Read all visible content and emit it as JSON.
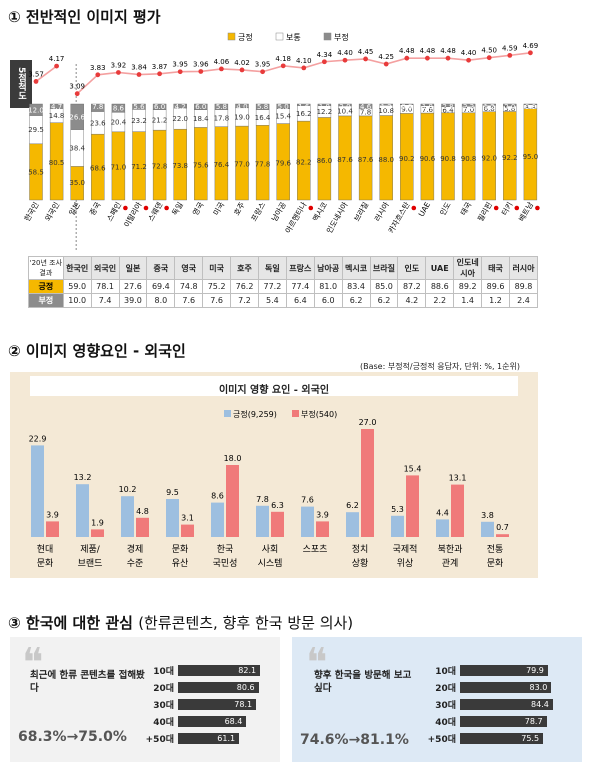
{
  "section1": {
    "title": "① 전반적인 이미지 평가",
    "side_label": "5점척도",
    "legend": [
      {
        "label": "긍정",
        "color": "#f5b800"
      },
      {
        "label": "보통",
        "color": "#ffffff"
      },
      {
        "label": "부정",
        "color": "#8c8c8c"
      }
    ],
    "table_header": "'20년 조사결과",
    "table_row_labels": [
      "긍정",
      "부정"
    ]
  },
  "section2": {
    "title": "② 이미지 영향요인 - 외국인",
    "base_note": "(Base: 부정적/긍정적 응답자, 단위: %, 1순위)",
    "chart_title": "이미지 영향 요인 - 외국인"
  },
  "section3": {
    "title_main": "③ 한국에 대한 관심",
    "title_sub": "(한류콘텐츠, 향후 한국 방문 의사)",
    "left": {
      "quote_mark": "❝",
      "question": "최근에 한류 콘텐츠를 접해봤다",
      "change": "68.3%→75.0%",
      "rows": [
        {
          "label": "10대",
          "value": 82.1
        },
        {
          "label": "20대",
          "value": 80.6
        },
        {
          "label": "30대",
          "value": 78.1
        },
        {
          "label": "40대",
          "value": 68.4
        },
        {
          "label": "+50대",
          "value": 61.1
        }
      ]
    },
    "right": {
      "quote_mark": "❝",
      "question": "향후 한국을 방문해 보고 싶다",
      "change": "74.6%→81.1%",
      "rows": [
        {
          "label": "10대",
          "value": 79.9
        },
        {
          "label": "20대",
          "value": 83.0
        },
        {
          "label": "30대",
          "value": 84.4
        },
        {
          "label": "40대",
          "value": 78.7
        },
        {
          "label": "+50대",
          "value": 75.5
        }
      ]
    }
  },
  "chart_data": [
    {
      "type": "bar",
      "stacked": true,
      "categories": [
        "한국인",
        "외국인",
        "일본",
        "중국",
        "스페인",
        "이탈리아",
        "스웨덴",
        "독일",
        "영국",
        "미국",
        "호주",
        "프랑스",
        "남아공",
        "아르헨티나",
        "멕시코",
        "인도네시아",
        "브라질",
        "러시아",
        "카자흐스탄",
        "UAE",
        "인도",
        "태국",
        "필리핀",
        "터키",
        "베트남"
      ],
      "red_dot_categories": [
        "스페인",
        "이탈리아",
        "스웨덴",
        "아르헨티나",
        "카자흐스탄",
        "필리핀",
        "터키",
        "베트남"
      ],
      "series": [
        {
          "name": "긍정",
          "color": "#f5b800",
          "values": [
            58.5,
            80.5,
            35.0,
            68.6,
            71.0,
            71.2,
            72.8,
            73.8,
            75.6,
            76.4,
            77.0,
            77.8,
            79.6,
            82.2,
            86.0,
            87.6,
            87.6,
            88.0,
            90.2,
            90.6,
            90.8,
            90.8,
            92.0,
            92.2,
            95.0
          ]
        },
        {
          "name": "보통",
          "color": "#ffffff",
          "values": [
            29.5,
            14.8,
            38.4,
            23.6,
            20.4,
            23.2,
            21.2,
            22.0,
            18.4,
            17.8,
            19.0,
            16.4,
            15.4,
            16.2,
            12.2,
            10.4,
            7.8,
            10.8,
            9.0,
            7.6,
            6.4,
            7.0,
            6.8,
            5.8,
            4.4
          ]
        },
        {
          "name": "부정",
          "color": "#8c8c8c",
          "values": [
            12.0,
            4.7,
            26.6,
            7.8,
            8.6,
            5.6,
            6.0,
            4.2,
            6.0,
            5.8,
            4.0,
            5.8,
            5.0,
            1.6,
            1.8,
            2.0,
            4.6,
            1.2,
            0.8,
            1.8,
            2.8,
            2.2,
            1.2,
            2.0,
            0.6
          ]
        }
      ],
      "line_series": {
        "name": "5점척도",
        "values": [
          3.57,
          4.17,
          3.09,
          3.83,
          3.92,
          3.84,
          3.87,
          3.95,
          3.96,
          4.06,
          4.02,
          3.95,
          4.18,
          4.1,
          4.34,
          4.4,
          4.45,
          4.25,
          4.48,
          4.48,
          4.48,
          4.4,
          4.5,
          4.59,
          4.69
        ]
      },
      "ylim": [
        0,
        100
      ],
      "table": {
        "columns": [
          "한국인",
          "외국인",
          "일본",
          "중국",
          "영국",
          "미국",
          "호주",
          "독일",
          "프랑스",
          "남아공",
          "멕시코",
          "브라질",
          "인도",
          "UAE",
          "인도네시아",
          "태국",
          "러시아"
        ],
        "rows": [
          {
            "label": "긍정",
            "values": [
              59.0,
              78.1,
              27.6,
              69.4,
              74.8,
              75.2,
              76.2,
              77.2,
              77.4,
              81.0,
              83.4,
              85.0,
              87.2,
              88.6,
              89.2,
              89.6,
              89.8
            ]
          },
          {
            "label": "부정",
            "values": [
              10.0,
              7.4,
              39.0,
              8.0,
              7.6,
              7.6,
              7.2,
              5.4,
              6.4,
              6.0,
              6.2,
              6.2,
              4.2,
              2.2,
              1.4,
              1.2,
              2.4
            ]
          }
        ]
      }
    },
    {
      "type": "bar",
      "title": "이미지 영향 요인 - 외국인",
      "categories": [
        "현대 문화",
        "제품/ 브랜드",
        "경제 수준",
        "문화 유산",
        "한국 국민성",
        "사회 시스템",
        "스포츠",
        "정치 상황",
        "국제적 위상",
        "북한과 관계",
        "전통 문화"
      ],
      "series": [
        {
          "name": "긍정(9,259)",
          "color": "#9dbfe0",
          "values": [
            22.9,
            13.2,
            10.2,
            9.5,
            8.6,
            7.8,
            7.6,
            6.2,
            5.3,
            4.4,
            3.8
          ]
        },
        {
          "name": "부정(540)",
          "color": "#f07a7a",
          "values": [
            3.9,
            1.9,
            4.8,
            3.1,
            18.0,
            6.3,
            3.9,
            27.0,
            15.4,
            13.1,
            0.7
          ]
        }
      ],
      "ylim": [
        0,
        30
      ]
    }
  ]
}
